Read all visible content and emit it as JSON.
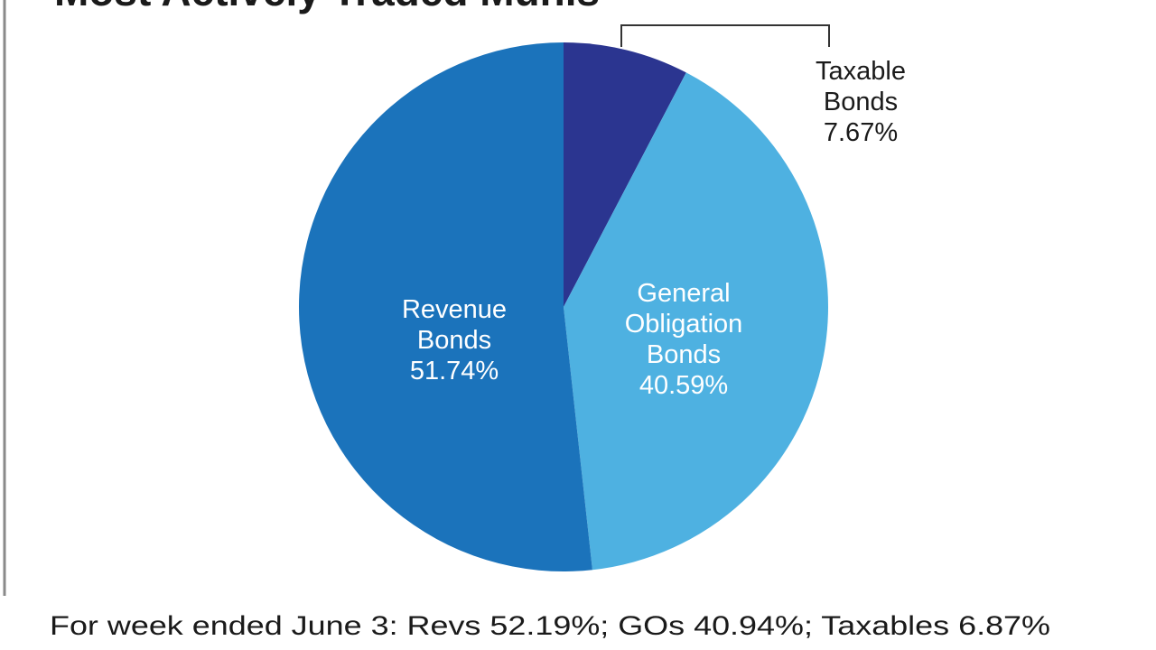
{
  "chart_data": {
    "type": "pie",
    "title": "Most Actively Traded Munis",
    "categories": [
      "Taxable Bonds",
      "General Obligation Bonds",
      "Revenue Bonds"
    ],
    "values": [
      7.67,
      40.59,
      51.74
    ],
    "value_labels": [
      "7.67%",
      "40.59%",
      "51.74%"
    ],
    "colors": [
      "#2b3590",
      "#4eb1e1",
      "#1b73bb"
    ],
    "footnote": "For week ended June 3: Revs 52.19%; GOs 40.94%; Taxables 6.87%"
  }
}
